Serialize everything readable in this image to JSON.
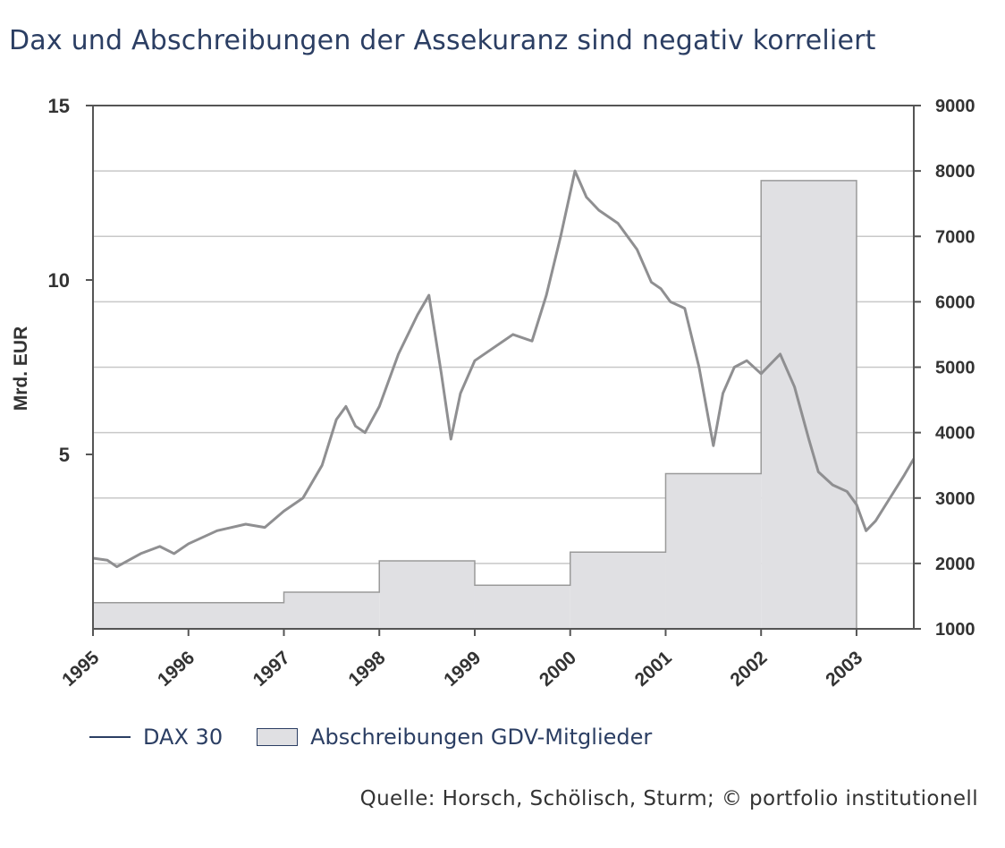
{
  "title": "Dax und Abschreibungen der Assekuranz sind negativ korreliert",
  "legend": {
    "dax": "DAX 30",
    "writeoffs": "Abschreibungen GDV-Mitglieder"
  },
  "source": "Quelle: Horsch, Schölisch, Sturm; © portfolio institutionell",
  "colors": {
    "title": "#2b3e63",
    "dax_line": "#8f8f91",
    "bars": "#e0e0e3",
    "bar_stroke": "#9a9a9a",
    "grid": "#c8c8c8",
    "frame": "#555555"
  },
  "chart_data": {
    "type": "line",
    "title": "Dax und Abschreibungen der Assekuranz sind negativ korreliert",
    "x_range": [
      1995.0,
      2003.6
    ],
    "x_tick_labels": [
      "1995",
      "1996",
      "1997",
      "1998",
      "1999",
      "2000",
      "2001",
      "2002",
      "2003"
    ],
    "x_ticks": [
      1995,
      1996,
      1997,
      1998,
      1999,
      2000,
      2001,
      2002,
      2003
    ],
    "y_left": {
      "label": "Mrd. EUR",
      "range": [
        0,
        15
      ],
      "ticks": [
        5,
        10,
        15
      ]
    },
    "y_right": {
      "label": "",
      "range": [
        1000,
        9000
      ],
      "ticks": [
        1000,
        2000,
        3000,
        4000,
        5000,
        6000,
        7000,
        8000,
        9000
      ]
    },
    "grid": true,
    "legend_position": "bottom-left",
    "series": [
      {
        "name": "Abschreibungen GDV-Mitglieder",
        "type": "step-area",
        "axis": "left",
        "steps": [
          {
            "from": 1995.0,
            "to": 1997.0,
            "value": 0.75
          },
          {
            "from": 1997.0,
            "to": 1998.0,
            "value": 1.05
          },
          {
            "from": 1998.0,
            "to": 1999.0,
            "value": 1.95
          },
          {
            "from": 1999.0,
            "to": 2000.0,
            "value": 1.25
          },
          {
            "from": 2000.0,
            "to": 2001.0,
            "value": 2.2
          },
          {
            "from": 2001.0,
            "to": 2002.0,
            "value": 4.45
          },
          {
            "from": 2002.0,
            "to": 2003.0,
            "value": 12.85
          }
        ]
      },
      {
        "name": "DAX 30",
        "type": "line",
        "axis": "right",
        "x": [
          1995.0,
          1995.15,
          1995.25,
          1995.5,
          1995.7,
          1995.85,
          1996.0,
          1996.3,
          1996.6,
          1996.8,
          1997.0,
          1997.2,
          1997.4,
          1997.55,
          1997.65,
          1997.75,
          1997.85,
          1998.0,
          1998.2,
          1998.4,
          1998.52,
          1998.65,
          1998.75,
          1998.85,
          1999.0,
          1999.2,
          1999.4,
          1999.6,
          1999.75,
          1999.9,
          2000.05,
          2000.17,
          2000.3,
          2000.5,
          2000.7,
          2000.85,
          2000.95,
          2001.05,
          2001.2,
          2001.35,
          2001.5,
          2001.6,
          2001.72,
          2001.85,
          2002.0,
          2002.2,
          2002.35,
          2002.5,
          2002.6,
          2002.75,
          2002.9,
          2003.0,
          2003.1,
          2003.2,
          2003.35,
          2003.5,
          2003.6
        ],
        "y": [
          2080,
          2050,
          1950,
          2150,
          2260,
          2150,
          2300,
          2500,
          2600,
          2550,
          2800,
          3000,
          3500,
          4200,
          4400,
          4100,
          4000,
          4400,
          5200,
          5800,
          6100,
          4900,
          3900,
          4600,
          5100,
          5300,
          5500,
          5400,
          6100,
          7000,
          8000,
          7600,
          7400,
          7200,
          6800,
          6300,
          6200,
          6000,
          5900,
          5000,
          3800,
          4600,
          5000,
          5100,
          4900,
          5200,
          4700,
          3900,
          3400,
          3200,
          3100,
          2900,
          2500,
          2650,
          3000,
          3350,
          3600
        ]
      }
    ]
  }
}
